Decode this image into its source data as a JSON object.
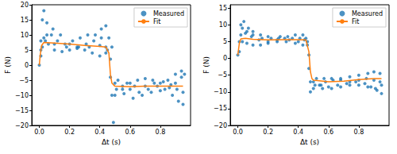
{
  "chart_data": [
    {
      "type": "scatter",
      "xlabel": "Δt (s)",
      "ylabel": "F (N)",
      "legend": "upper right",
      "grid": false,
      "xlim": [
        -0.05,
        1.0
      ],
      "xticks": [
        {
          "value": 0,
          "label": "0.0"
        },
        {
          "value": 0.2,
          "label": "0.2"
        },
        {
          "value": 0.4,
          "label": "0.4"
        },
        {
          "value": 0.6,
          "label": "0.6"
        },
        {
          "value": 0.8,
          "label": "0.8"
        }
      ],
      "ylim": [
        -20,
        20
      ],
      "yticks": [
        {
          "value": -20,
          "label": "−20"
        },
        {
          "value": -15,
          "label": "−15"
        },
        {
          "value": -10,
          "label": "−10"
        },
        {
          "value": -5,
          "label": "−5"
        },
        0,
        5,
        10,
        15,
        20
      ],
      "series": [
        {
          "name": "Measured",
          "type": "scatter",
          "marker": "circle",
          "color": "#1f77b4",
          "x": [
            0.01,
            0.02,
            0.03,
            0.05,
            0.08,
            0.12,
            0.17,
            0.22,
            0.27,
            0.32,
            0.37,
            0.41,
            0.44,
            0.01,
            0.03,
            0.06,
            0.1,
            0.15,
            0.2,
            0.25,
            0.3,
            0.35,
            0.4,
            0.44,
            0.02,
            0.05,
            0.09,
            0.14,
            0.2,
            0.26,
            0.31,
            0.36,
            0.41,
            0.44,
            0.46,
            0,
            0.01,
            0.04,
            0.1,
            0.18,
            0.25,
            0.33,
            0.4,
            0.45,
            0.47,
            0.47,
            0.48,
            0.49,
            0.48,
            0.5,
            0.55,
            0.6,
            0.65,
            0.7,
            0.75,
            0.8,
            0.85,
            0.9,
            0.94,
            0.5,
            0.55,
            0.6,
            0.66,
            0.72,
            0.78,
            0.83,
            0.88,
            0.92,
            0.95,
            0.52,
            0.58,
            0.63,
            0.7,
            0.76,
            0.82,
            0.87,
            0.91,
            0.95,
            0.51,
            0.56,
            0.62,
            0.68,
            0.74,
            0.8,
            0.86,
            0.9,
            0.94,
            0.96
          ],
          "values": [
            8,
            15,
            18,
            14,
            10,
            8,
            7,
            8,
            9,
            10,
            10,
            9,
            6,
            3,
            9,
            7,
            5,
            4.5,
            5,
            6,
            5,
            4,
            3,
            4,
            6,
            10,
            12,
            10,
            7,
            6,
            7,
            8,
            12,
            13,
            9,
            0,
            5,
            8,
            7,
            6,
            5.5,
            6,
            6.5,
            5,
            2,
            -4,
            -10,
            -19,
            6,
            -10,
            -8,
            -6,
            -5,
            -4.5,
            -5,
            -6,
            -5,
            -3,
            -2,
            -6,
            -7,
            -8,
            -9,
            -8,
            -7,
            -8,
            -10,
            -12,
            -13,
            -5,
            -6,
            -7,
            -7,
            -6,
            -5.5,
            -6.5,
            -8,
            -9,
            -8,
            -9.5,
            -11,
            -10,
            -9,
            -8.5,
            -7.5,
            -6,
            -4,
            -3
          ]
        },
        {
          "name": "Fit",
          "type": "line",
          "line_style": "solid",
          "color": "#ff7f0e",
          "x": [
            0,
            0.005,
            0.015,
            0.03,
            0.1,
            0.2,
            0.3,
            0.4,
            0.44,
            0.46,
            0.47,
            0.48,
            0.5,
            0.6,
            0.7,
            0.8,
            0.9,
            0.95
          ],
          "values": [
            0,
            3,
            6.5,
            7.5,
            7.3,
            7,
            6.5,
            6.2,
            6,
            4,
            -3,
            -6,
            -7,
            -7.2,
            -7,
            -7,
            -7,
            -7
          ]
        }
      ]
    },
    {
      "type": "scatter",
      "xlabel": "Δt (s)",
      "ylabel": "F (N)",
      "legend": "upper right",
      "grid": false,
      "xlim": [
        -0.05,
        1.0
      ],
      "xticks": [
        {
          "value": 0,
          "label": "0.0"
        },
        {
          "value": 0.2,
          "label": "0.2"
        },
        {
          "value": 0.4,
          "label": "0.4"
        },
        {
          "value": 0.6,
          "label": "0.6"
        },
        {
          "value": 0.8,
          "label": "0.8"
        }
      ],
      "ylim": [
        -20,
        16
      ],
      "yticks": [
        {
          "value": -20,
          "label": "−20"
        },
        {
          "value": -15,
          "label": "−15"
        },
        {
          "value": -10,
          "label": "−10"
        },
        {
          "value": -5,
          "label": "−5"
        },
        0,
        5,
        10,
        15
      ],
      "series": [
        {
          "name": "Measured",
          "type": "scatter",
          "marker": "circle",
          "color": "#1f77b4",
          "x": [
            0,
            0.01,
            0.02,
            0.04,
            0.07,
            0.1,
            0.15,
            0.2,
            0.27,
            0.33,
            0.38,
            0.43,
            0.46,
            0.01,
            0.03,
            0.06,
            0.1,
            0.15,
            0.2,
            0.26,
            0.32,
            0.38,
            0.43,
            0.46,
            0.02,
            0.05,
            0.09,
            0.14,
            0.2,
            0.26,
            0.31,
            0.36,
            0.41,
            0.45,
            0.03,
            0.06,
            0.1,
            0.16,
            0.22,
            0.28,
            0.34,
            0.4,
            0.44,
            0.47,
            0.47,
            0.48,
            0.48,
            0.5,
            0.54,
            0.58,
            0.63,
            0.68,
            0.74,
            0.8,
            0.86,
            0.9,
            0.94,
            0.5,
            0.55,
            0.6,
            0.66,
            0.72,
            0.78,
            0.84,
            0.88,
            0.92,
            0.95,
            0.52,
            0.57,
            0.62,
            0.68,
            0.74,
            0.8,
            0.85,
            0.9,
            0.94,
            0.51,
            0.56,
            0.62,
            0.68,
            0.74,
            0.8,
            0.86,
            0.91,
            0.95
          ],
          "values": [
            1,
            5,
            10,
            11,
            9,
            8,
            7,
            6.5,
            6,
            6.5,
            7,
            7,
            5,
            2,
            5,
            4.5,
            4,
            4,
            4.5,
            5,
            5,
            4.5,
            4,
            4,
            7,
            7.5,
            6.5,
            5.5,
            5,
            5.5,
            6,
            6,
            6,
            6,
            9,
            8,
            7,
            6,
            6,
            6.5,
            5.5,
            5,
            5.5,
            1,
            -3,
            -7,
            -10,
            -9,
            -8,
            -7,
            -6.5,
            -6,
            -5.5,
            -5,
            -4.5,
            -4,
            -4.5,
            -7,
            -8,
            -8.5,
            -8,
            -7.5,
            -7,
            -7.5,
            -8.5,
            -9.5,
            -10.5,
            -6,
            -6,
            -6,
            -6.5,
            -7,
            -6.5,
            -6,
            -6.5,
            -7,
            -8,
            -9,
            -9,
            -8.5,
            -8,
            -8,
            -8.5,
            -9,
            -8
          ]
        },
        {
          "name": "Fit",
          "type": "line",
          "line_style": "solid",
          "color": "#ff7f0e",
          "x": [
            0,
            0.01,
            0.02,
            0.05,
            0.1,
            0.2,
            0.3,
            0.4,
            0.45,
            0.47,
            0.48,
            0.49,
            0.5,
            0.6,
            0.7,
            0.8,
            0.9,
            0.95
          ],
          "values": [
            1,
            4.5,
            5.8,
            6,
            5.7,
            5.5,
            5.6,
            5.6,
            5.5,
            2,
            -4,
            -6,
            -6.5,
            -7,
            -6.8,
            -6.3,
            -6,
            -6
          ]
        }
      ]
    }
  ]
}
